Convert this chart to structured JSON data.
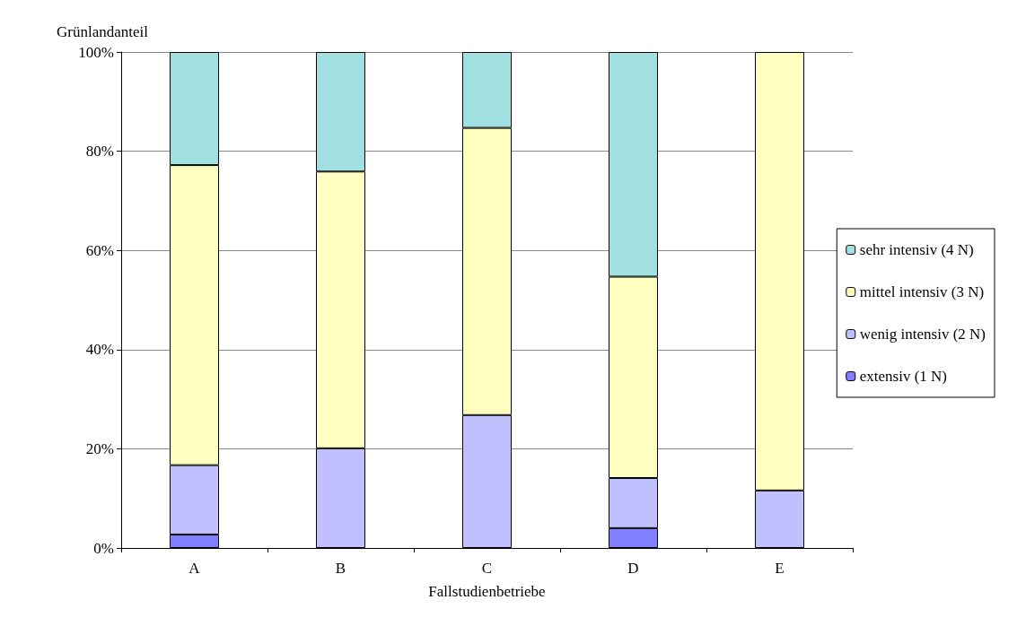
{
  "chart_data": {
    "type": "bar",
    "stacked": true,
    "xlabel": "Fallstudienbetriebe",
    "ylabel": "Grünlandanteil",
    "categories": [
      "A",
      "B",
      "C",
      "D",
      "E"
    ],
    "series": [
      {
        "name": "extensiv (1 N)",
        "color": "#8080ff",
        "values": [
          2.7,
          null,
          null,
          4,
          null
        ]
      },
      {
        "name": "wenig intensiv (2 N)",
        "color": "#c0c0ff",
        "values": [
          14,
          20.1,
          26.8,
          10.1,
          11.6
        ]
      },
      {
        "name": "mittel intensiv (3 N)",
        "color": "#ffffc0",
        "values": [
          60.5,
          55.8,
          57.9,
          40.6,
          88.4
        ]
      },
      {
        "name": "sehr intensiv (4 N)",
        "color": "#a0e0e0",
        "values": [
          22.8,
          24.1,
          15.3,
          45.3,
          null
        ]
      }
    ],
    "ylim": [
      0,
      100
    ],
    "yticks": [
      {
        "value": 0,
        "label": "0%"
      },
      {
        "value": 20,
        "label": "20%"
      },
      {
        "value": 40,
        "label": "40%"
      },
      {
        "value": 60,
        "label": "60%"
      },
      {
        "value": 80,
        "label": "80%"
      },
      {
        "value": 100,
        "label": "100%"
      }
    ],
    "grid": "y",
    "legend": "right"
  }
}
